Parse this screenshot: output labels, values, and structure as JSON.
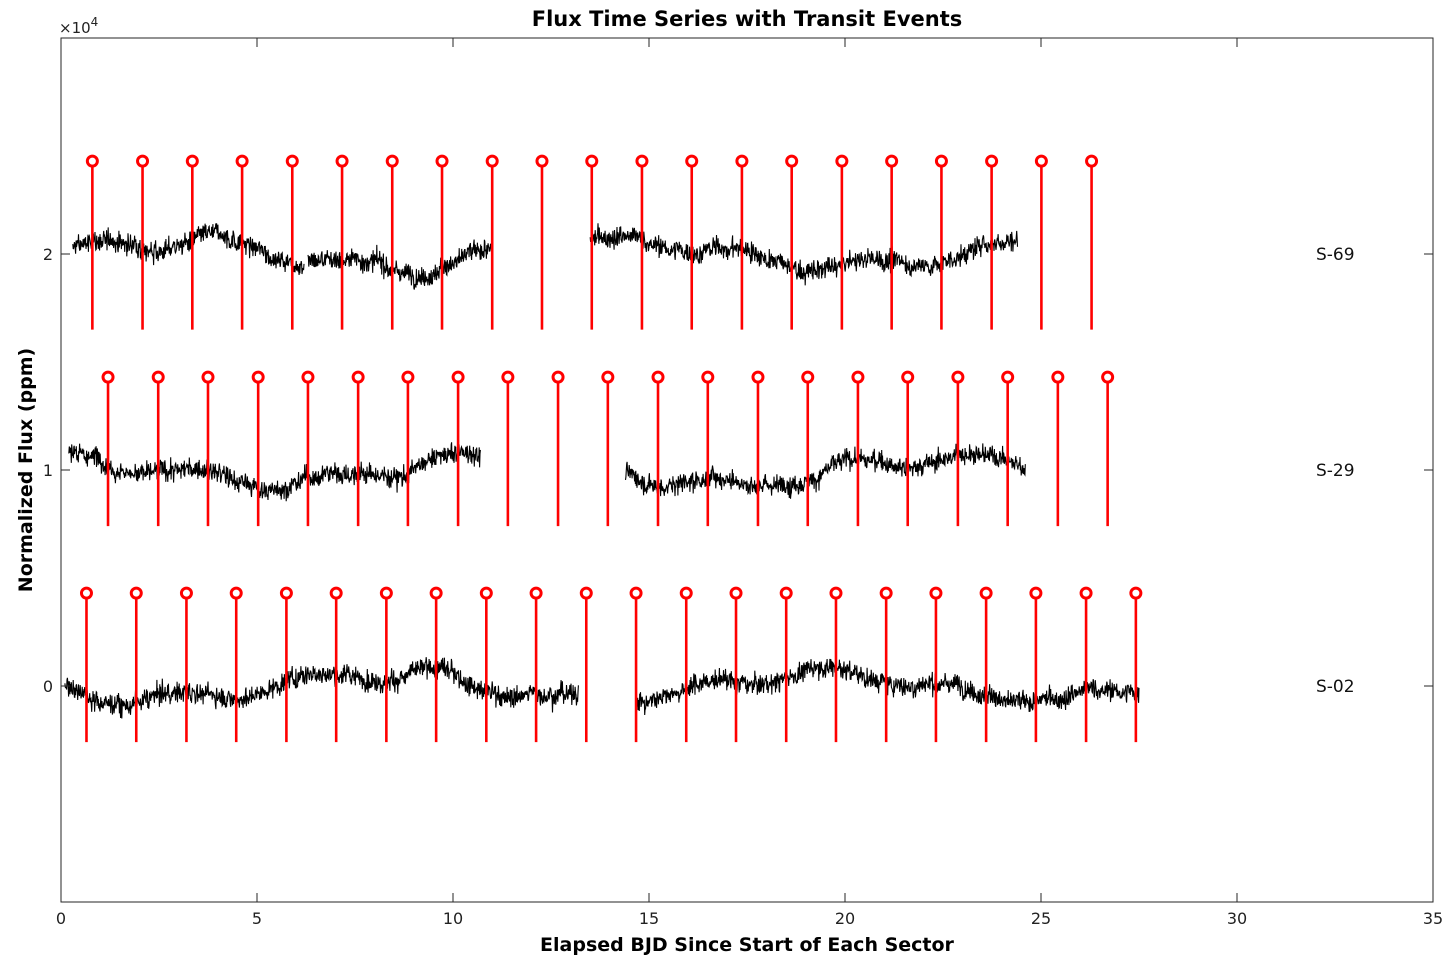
{
  "chart_data": {
    "type": "line",
    "title": "Flux Time Series with Transit Events",
    "xlabel": "Elapsed BJD Since Start of Each Sector",
    "ylabel": "Normalized Flux (ppm)",
    "y_multiplier": "×10",
    "y_multiplier_exp": "4",
    "xlim": [
      0,
      35
    ],
    "ylim": [
      -1,
      3
    ],
    "x_ticks": [
      0,
      5,
      10,
      15,
      20,
      25,
      30,
      35
    ],
    "y_ticks": [
      0,
      1,
      2
    ],
    "grid": false,
    "series_color": "#000000",
    "transit_color": "#ff0000",
    "sectors": [
      {
        "name": "S-69",
        "offset": 2,
        "segments": [
          [
            0.3,
            6.2
          ],
          [
            6.3,
            11.0
          ],
          [
            13.5,
            19.9
          ],
          [
            19.9,
            24.4
          ]
        ],
        "transit_times": [
          0.8,
          2.08,
          3.35,
          4.62,
          5.9,
          7.17,
          8.45,
          9.72,
          11.0,
          12.27,
          13.54,
          14.82,
          16.09,
          17.37,
          18.64,
          19.92,
          21.19,
          22.46,
          23.74,
          25.01,
          26.29
        ],
        "transit_depth": -0.35,
        "transit_top": 0.43
      },
      {
        "name": "S-29",
        "offset": 1,
        "segments": [
          [
            0.2,
            10.7
          ],
          [
            14.4,
            24.6
          ]
        ],
        "transit_times": [
          1.2,
          2.48,
          3.75,
          5.03,
          6.3,
          7.58,
          8.85,
          10.13,
          11.4,
          12.68,
          13.95,
          15.23,
          16.5,
          17.78,
          19.05,
          20.33,
          21.6,
          22.88,
          24.15,
          25.43,
          26.7
        ],
        "transit_depth": -0.26,
        "transit_top": 0.43
      },
      {
        "name": "S-02",
        "offset": 0,
        "segments": [
          [
            0.1,
            13.2
          ],
          [
            14.7,
            27.5
          ]
        ],
        "transit_times": [
          0.65,
          1.92,
          3.2,
          4.47,
          5.75,
          7.02,
          8.3,
          9.57,
          10.85,
          12.12,
          13.4,
          14.67,
          15.95,
          17.22,
          18.5,
          19.77,
          21.05,
          22.32,
          23.6,
          24.87,
          26.15,
          27.42
        ],
        "transit_depth": -0.26,
        "transit_top": 0.43
      }
    ]
  }
}
